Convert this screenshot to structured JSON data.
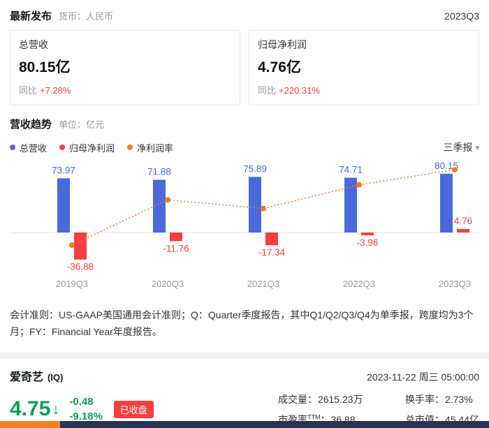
{
  "header": {
    "title": "最新发布",
    "currency": "货币：人民币",
    "period": "2023Q3"
  },
  "cards": [
    {
      "label": "总营收",
      "value": "80.15亿",
      "yoy_label": "同比",
      "yoy_value": "+7.28%"
    },
    {
      "label": "归母净利润",
      "value": "4.76亿",
      "yoy_label": "同比",
      "yoy_value": "+220.31%"
    }
  ],
  "trend": {
    "title": "营收趋势",
    "unit": "单位：亿元",
    "legend": [
      {
        "label": "总营收",
        "color": "#4a69dd"
      },
      {
        "label": "归母净利润",
        "color": "#f53f3f"
      },
      {
        "label": "净利润率",
        "color": "#f57c1f"
      }
    ],
    "period_select": {
      "value": "三季报",
      "chevron": "▾"
    }
  },
  "chart_data": {
    "type": "bar",
    "categories": [
      "2019Q3",
      "2020Q3",
      "2021Q3",
      "2022Q3",
      "2023Q3"
    ],
    "series": [
      {
        "name": "总营收",
        "type": "bar",
        "color": "#4a69dd",
        "values": [
          73.97,
          71.88,
          75.89,
          74.71,
          80.15
        ]
      },
      {
        "name": "归母净利润",
        "type": "bar",
        "color": "#f53f3f",
        "values": [
          -36.88,
          -11.76,
          -17.34,
          -3.96,
          4.76
        ]
      },
      {
        "name": "净利润率",
        "type": "line",
        "color": "#f57c1f",
        "unit": "%",
        "values": [
          -49.9,
          -16.4,
          -22.8,
          -5.3,
          5.9
        ]
      }
    ],
    "ylabel": "亿元",
    "baseline": 0,
    "grid": false,
    "legend_position": "top"
  },
  "footnote": "会计准则：US-GAAP美国通用会计准则；Q：Quarter季度报告，其中Q1/Q2/Q3/Q4为单季报，跨度均为3个月；FY：Financial Year年度报告。",
  "stock": {
    "name": "爱奇艺",
    "ticker": "(IQ)",
    "datetime": "2023-11-22 周三 05:00:00",
    "price": "4.75",
    "arrow": "↓",
    "change": "-0.48",
    "change_pct": "-9.18%",
    "status": "已收盘",
    "stats": [
      {
        "label": "成交量：",
        "value": "2615.23万"
      },
      {
        "label": "换手率：",
        "value": "2.73%"
      },
      {
        "label": "市盈率",
        "sup": "TTM",
        "label2": "：",
        "value": "36.88"
      },
      {
        "label": "总市值：",
        "value": "45.44亿"
      }
    ]
  },
  "colors": {
    "bar_blue": "#4a69dd",
    "accent_red": "#f53f3f",
    "line_orange": "#f57c1f",
    "down_green": "#0a9e55",
    "bottom_bar_navy": "#273352",
    "bottom_tab_orange": "#f5821f"
  }
}
